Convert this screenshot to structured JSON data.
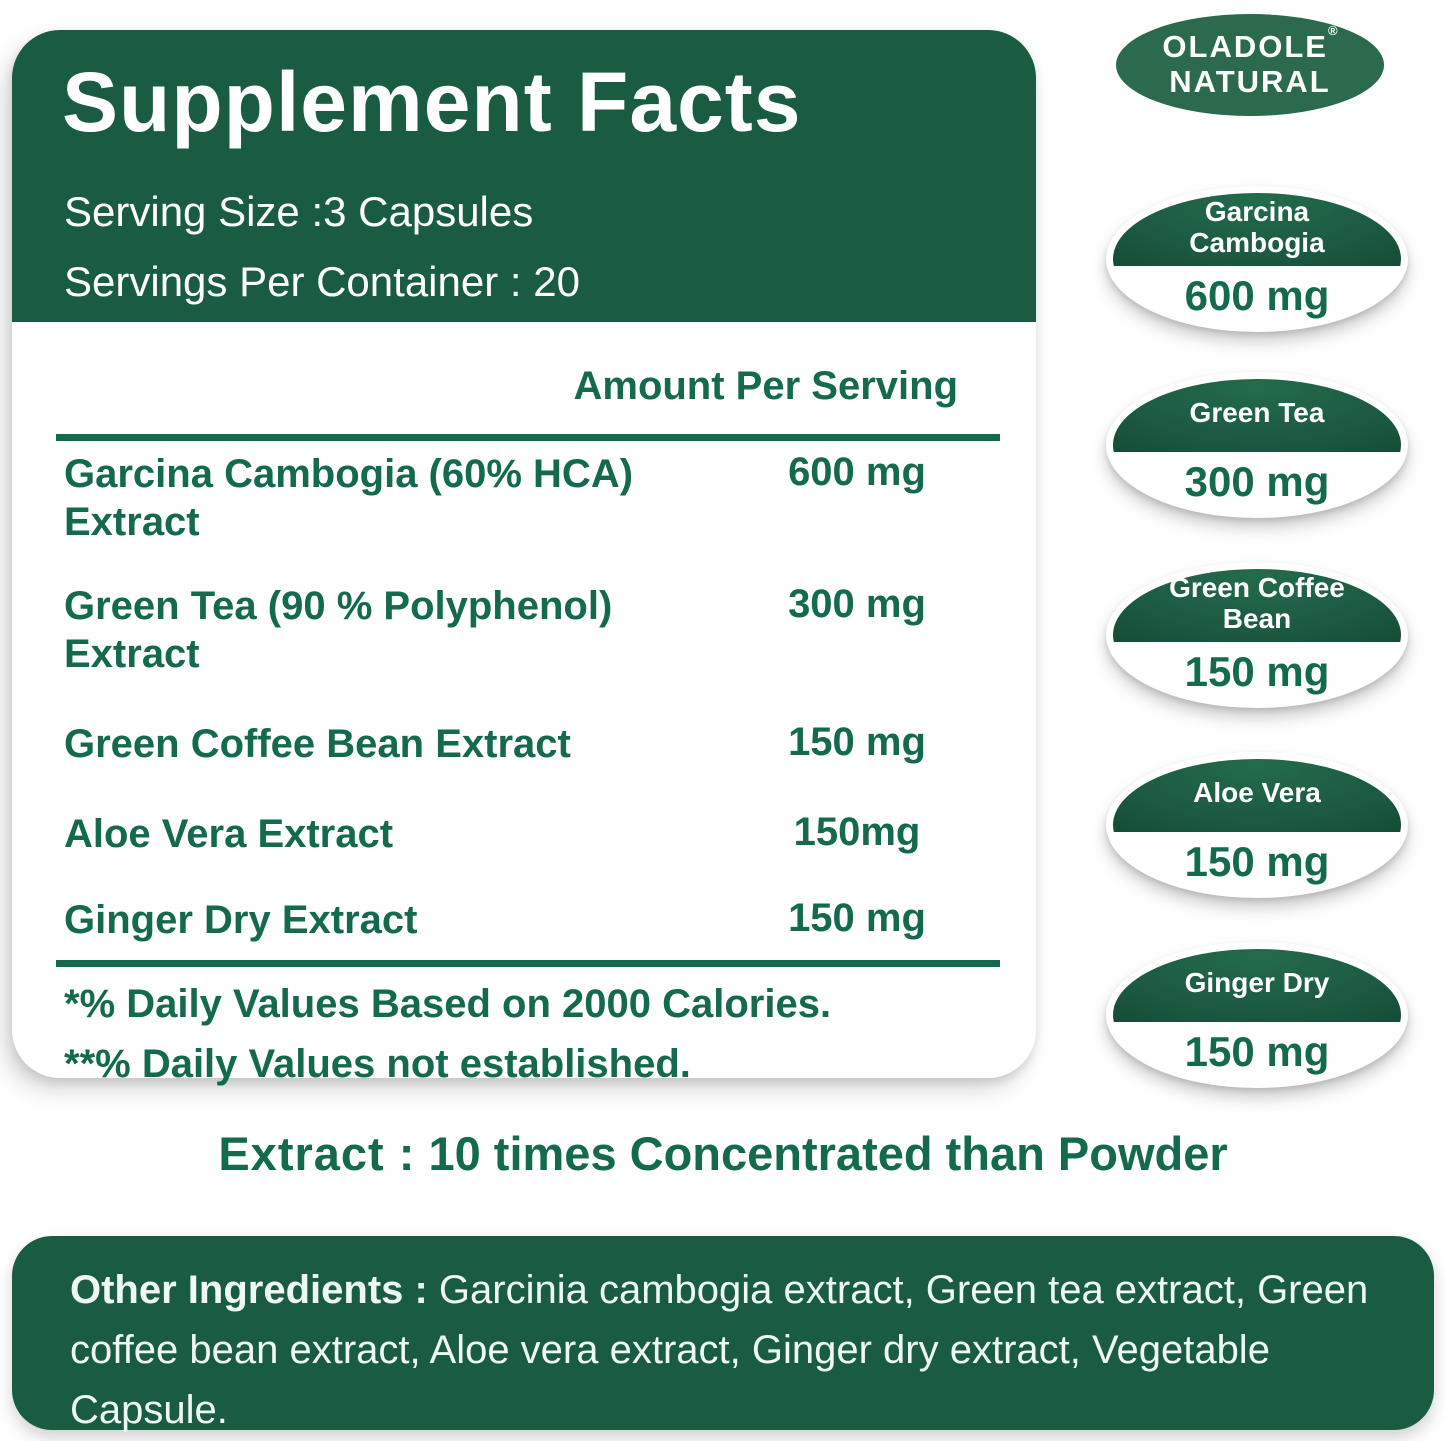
{
  "brand": {
    "line1": "OLADOLE",
    "line2": "NATURAL",
    "registered_mark": "®"
  },
  "panel": {
    "title": "Supplement Facts",
    "serving_size": "Serving Size :3 Capsules",
    "servings_per_container": "Servings Per Container : 20",
    "amount_header": "Amount Per Serving",
    "rows": [
      {
        "label": "Garcina Cambogia (60% HCA) Extract",
        "amount": "600 mg"
      },
      {
        "label": "Green Tea (90 % Polyphenol) Extract",
        "amount": "300 mg"
      },
      {
        "label": "Green Coffee Bean Extract",
        "amount": "150 mg"
      },
      {
        "label": "Aloe Vera Extract",
        "amount": "150mg"
      },
      {
        "label": "Ginger Dry Extract",
        "amount": "150 mg"
      }
    ],
    "footnotes": [
      "*% Daily Values Based on 2000 Calories.",
      "**% Daily Values not established."
    ]
  },
  "badges": [
    {
      "name": "Garcina Cambogia",
      "amount": "600 mg"
    },
    {
      "name": "Green Tea",
      "amount": "300 mg"
    },
    {
      "name": "Green Coffee Bean",
      "amount": "150 mg"
    },
    {
      "name": "Aloe Vera",
      "amount": "150 mg"
    },
    {
      "name": "Ginger Dry",
      "amount": "150 mg"
    }
  ],
  "tagline": {
    "bold": "Extract :",
    "rest": " 10 times Concentrated than Powder"
  },
  "other_ingredients": {
    "bold": "Other Ingredients :",
    "rest": " Garcinia cambogia extract, Green tea extract, Green coffee bean extract, Aloe vera extract, Ginger dry extract, Vegetable Capsule."
  },
  "colors": {
    "green_dark": "#1A5C41",
    "green_text": "#136A4C",
    "green_logo": "#2B6A4C",
    "dome_edge": "#11412E",
    "dome_center": "#236B4B",
    "ink_white": "#FFFFFF",
    "mint_text": "#EFF9F3"
  }
}
